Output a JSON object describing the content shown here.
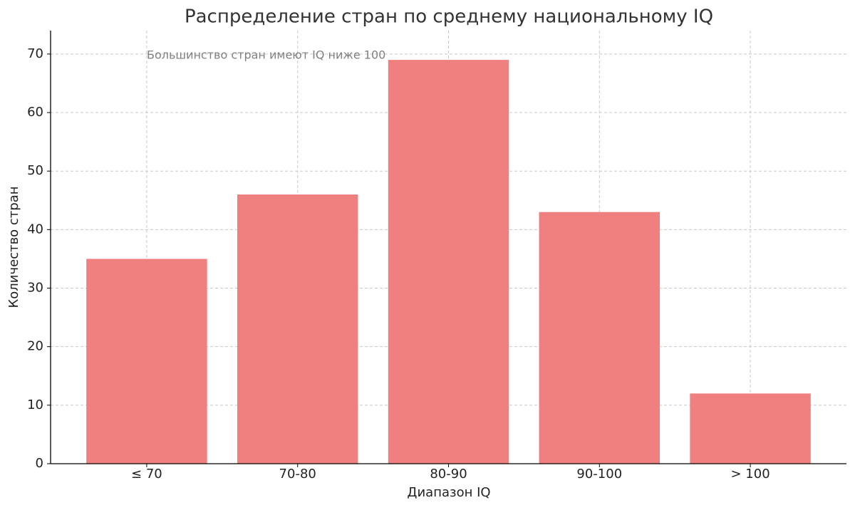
{
  "chart_data": {
    "type": "bar",
    "title": "Распределение стран по среднему национальному IQ",
    "x_label": "Диапазон IQ",
    "y_label": "Количество стран",
    "annotation": "Большинство стран имеют IQ ниже 100",
    "categories": [
      "≤ 70",
      "70-80",
      "80-90",
      "90-100",
      "> 100"
    ],
    "values": [
      35,
      46,
      69,
      43,
      12
    ],
    "color": "#f08080",
    "ylim": [
      0,
      74
    ],
    "yticks": [
      0,
      10,
      20,
      30,
      40,
      50,
      60,
      70
    ],
    "grid": true
  }
}
